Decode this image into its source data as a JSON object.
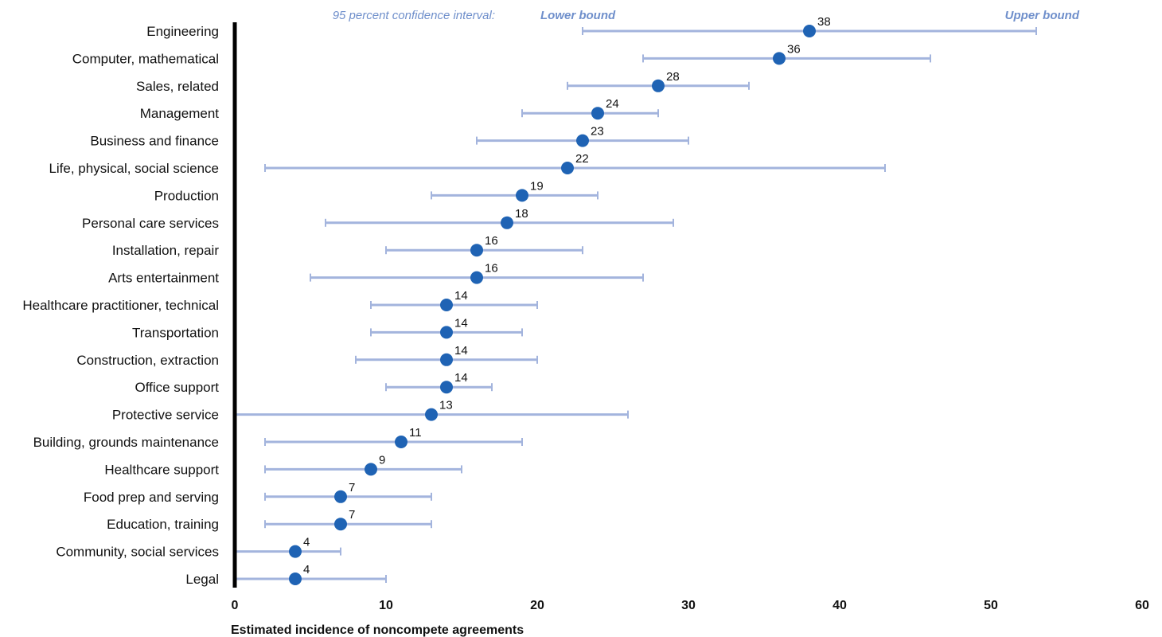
{
  "chart_data": {
    "type": "scatter",
    "subtype": "dot-with-confidence-interval",
    "orientation": "horizontal",
    "xlabel": "Estimated incidence of noncompete agreements",
    "xlim": [
      0,
      60
    ],
    "xticks": [
      0,
      10,
      20,
      30,
      40,
      50,
      60
    ],
    "legend": {
      "ci_label": "95 percent confidence interval:",
      "lower_label": "Lower bound",
      "upper_label": "Upper bound"
    },
    "colors": {
      "point": "#1f63b4",
      "interval": "#a3b4dd",
      "legend": "#6f8fcb",
      "axis": "#000000"
    },
    "categories": [
      "Engineering",
      "Computer, mathematical",
      "Sales, related",
      "Management",
      "Business and finance",
      "Life, physical, social science",
      "Production",
      "Personal care services",
      "Installation, repair",
      "Arts entertainment",
      "Healthcare practitioner, technical",
      "Transportation",
      "Construction, extraction",
      "Office support",
      "Protective service",
      "Building, grounds maintenance",
      "Healthcare support",
      "Food prep and serving",
      "Education, training",
      "Community, social services",
      "Legal"
    ],
    "values": [
      38,
      36,
      28,
      24,
      23,
      22,
      19,
      18,
      16,
      16,
      14,
      14,
      14,
      14,
      13,
      11,
      9,
      7,
      7,
      4,
      4
    ],
    "lower": [
      23,
      27,
      22,
      19,
      16,
      2,
      13,
      6,
      10,
      5,
      9,
      9,
      8,
      10,
      0,
      2,
      2,
      2,
      2,
      0,
      0
    ],
    "upper": [
      53,
      46,
      34,
      28,
      30,
      43,
      24,
      29,
      23,
      27,
      20,
      19,
      20,
      17,
      26,
      19,
      15,
      13,
      13,
      7,
      10
    ]
  }
}
